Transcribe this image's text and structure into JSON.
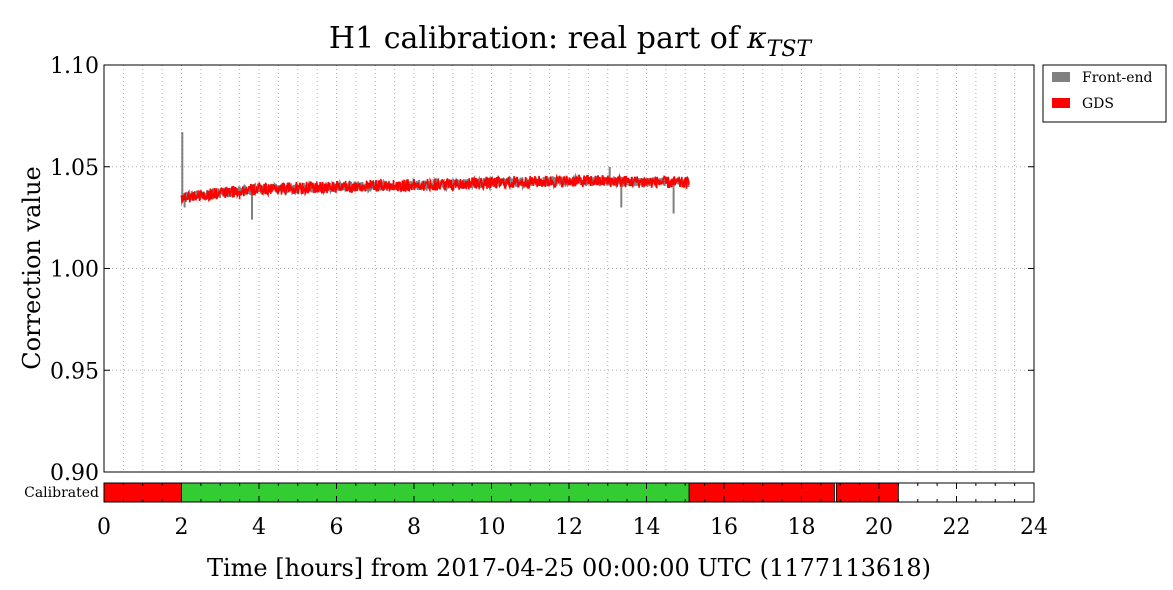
{
  "chart_data": {
    "type": "line",
    "title": "H1 calibration: real part of",
    "title_symbol": "κ",
    "title_subscript": "TST",
    "xlabel": "Time [hours] from 2017-04-25 00:00:00 UTC (1177113618)",
    "ylabel": "Correction value",
    "xlim": [
      0,
      24
    ],
    "ylim": [
      0.9,
      1.1
    ],
    "x_ticks": [
      "0",
      "2",
      "4",
      "6",
      "8",
      "10",
      "12",
      "14",
      "16",
      "18",
      "20",
      "22",
      "24"
    ],
    "y_ticks": [
      "0.90",
      "0.95",
      "1.00",
      "1.05",
      "1.10"
    ],
    "grid": true,
    "legend_position": "outside-top-right",
    "series": [
      {
        "name": "Front-end",
        "color": "#808080",
        "base": [
          [
            2.0,
            1.035
          ],
          [
            4.0,
            1.039
          ],
          [
            6.0,
            1.04
          ],
          [
            8.0,
            1.041
          ],
          [
            10.0,
            1.042
          ],
          [
            12.0,
            1.043
          ],
          [
            13.0,
            1.043
          ],
          [
            15.1,
            1.042
          ]
        ],
        "noise": 0.0025,
        "spikes": [
          [
            2.02,
            1.067
          ],
          [
            2.08,
            1.03
          ],
          [
            3.82,
            1.024
          ],
          [
            13.05,
            1.05
          ],
          [
            13.35,
            1.03
          ],
          [
            14.7,
            1.027
          ],
          [
            15.05,
            1.045
          ]
        ]
      },
      {
        "name": "GDS",
        "color": "#ff0000",
        "base": [
          [
            2.0,
            1.035
          ],
          [
            4.0,
            1.039
          ],
          [
            6.0,
            1.04
          ],
          [
            8.0,
            1.041
          ],
          [
            10.0,
            1.042
          ],
          [
            12.0,
            1.043
          ],
          [
            13.0,
            1.043
          ],
          [
            15.1,
            1.042
          ]
        ],
        "noise": 0.003,
        "spikes": [
          [
            3.5,
            1.034
          ]
        ]
      }
    ],
    "status_bar": {
      "label": "Calibrated",
      "segments": [
        {
          "start": 0.0,
          "end": 2.0,
          "color": "#ff0000"
        },
        {
          "start": 2.0,
          "end": 15.1,
          "color": "#33cc33"
        },
        {
          "start": 15.1,
          "end": 18.85,
          "color": "#ff0000"
        },
        {
          "start": 18.9,
          "end": 20.5,
          "color": "#ff0000"
        },
        {
          "start": 20.5,
          "end": 24.0,
          "color": "#ffffff"
        }
      ]
    }
  }
}
